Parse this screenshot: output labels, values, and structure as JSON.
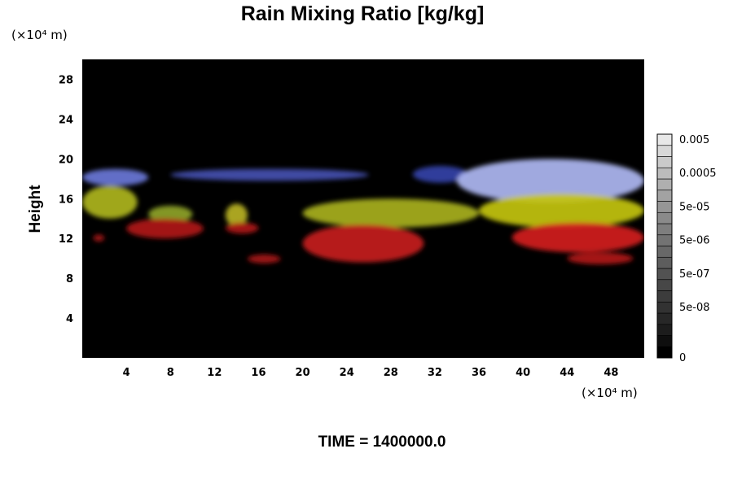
{
  "chart_data": {
    "type": "heatmap",
    "title": "Rain Mixing Ratio [kg/kg]",
    "xlabel": "",
    "ylabel": "Height",
    "x_unit": "(×10⁴ m)",
    "y_unit": "(×10⁴ m)",
    "xlim": [
      0,
      51
    ],
    "ylim": [
      0,
      30
    ],
    "x_ticks": [
      "4",
      "8",
      "12",
      "16",
      "20",
      "24",
      "28",
      "32",
      "36",
      "40",
      "44",
      "48"
    ],
    "y_ticks": [
      "4",
      "8",
      "12",
      "16",
      "20",
      "24",
      "28"
    ],
    "x_tick_values": [
      4,
      8,
      12,
      16,
      20,
      24,
      28,
      32,
      36,
      40,
      44,
      48
    ],
    "y_tick_values": [
      4,
      8,
      12,
      16,
      20,
      24,
      28
    ],
    "background_color": "#000000",
    "colorbar": {
      "labels": [
        "0.005",
        "0.0005",
        "5e-05",
        "5e-06",
        "5e-07",
        "5e-08",
        "0"
      ],
      "levels": 20,
      "colors": [
        "#000000",
        "#0e0e0e",
        "#1c1c1c",
        "#272727",
        "#323232",
        "#3c3c3c",
        "#474747",
        "#525252",
        "#5d5d5d",
        "#686868",
        "#737373",
        "#7e7e7e",
        "#8a8a8a",
        "#969696",
        "#a2a2a2",
        "#afafaf",
        "#bcbcbc",
        "#cacaca",
        "#d8d8d8",
        "#e8e8e8"
      ]
    },
    "regions": [
      {
        "layer": "blue",
        "color": "#6a78d8",
        "x": [
          0,
          6
        ],
        "y": [
          17.3,
          19.0
        ]
      },
      {
        "layer": "blue",
        "color": "#4550b0",
        "x": [
          8,
          26
        ],
        "y": [
          17.8,
          19.0
        ]
      },
      {
        "layer": "blue",
        "color": "#3542a8",
        "x": [
          30,
          35
        ],
        "y": [
          17.6,
          19.3
        ]
      },
      {
        "layer": "blue",
        "color": "#aeb7f2",
        "x": [
          34,
          51
        ],
        "y": [
          15.6,
          20.0
        ]
      },
      {
        "layer": "yellow",
        "color": "#aeb51c",
        "x": [
          0,
          5
        ],
        "y": [
          14.0,
          17.3
        ]
      },
      {
        "layer": "yellow",
        "color": "#8ea326",
        "x": [
          6,
          10
        ],
        "y": [
          13.6,
          15.3
        ]
      },
      {
        "layer": "yellow",
        "color": "#b9b222",
        "x": [
          13,
          15
        ],
        "y": [
          13.2,
          15.5
        ]
      },
      {
        "layer": "yellow",
        "color": "#a8b020",
        "x": [
          20,
          36
        ],
        "y": [
          13.1,
          16.0
        ]
      },
      {
        "layer": "yellow",
        "color": "#c3c40f",
        "x": [
          36,
          51
        ],
        "y": [
          13.1,
          16.5
        ]
      },
      {
        "layer": "red",
        "color": "#b01818",
        "x": [
          4,
          11
        ],
        "y": [
          12.0,
          14.0
        ]
      },
      {
        "layer": "red",
        "color": "#b01616",
        "x": [
          13,
          16
        ],
        "y": [
          12.5,
          13.6
        ]
      },
      {
        "layer": "red",
        "color": "#c61c1c",
        "x": [
          20,
          31
        ],
        "y": [
          9.6,
          13.4
        ]
      },
      {
        "layer": "red",
        "color": "#d22020",
        "x": [
          39,
          51
        ],
        "y": [
          10.6,
          13.6
        ]
      },
      {
        "layer": "red",
        "color": "#b21616",
        "x": [
          44,
          50
        ],
        "y": [
          9.4,
          10.6
        ]
      },
      {
        "layer": "red",
        "color": "#a81414",
        "x": [
          15,
          18
        ],
        "y": [
          9.5,
          10.4
        ]
      },
      {
        "layer": "red",
        "color": "#a81414",
        "x": [
          1,
          2
        ],
        "y": [
          11.7,
          12.4
        ]
      }
    ]
  },
  "footer": {
    "time_label": "TIME = 1400000.0"
  }
}
